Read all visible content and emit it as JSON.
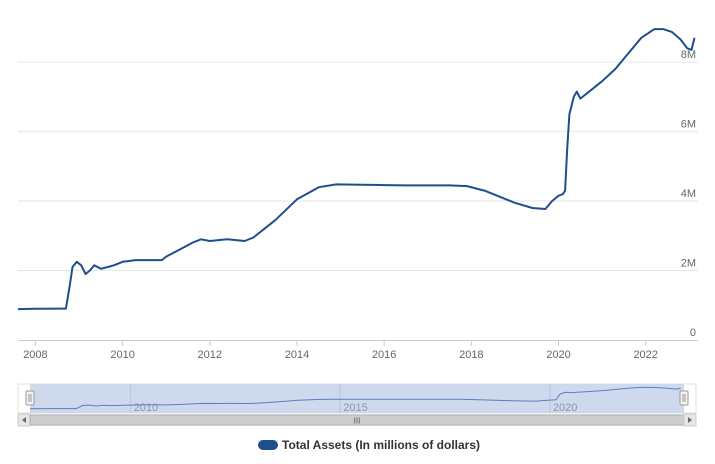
{
  "colors": {
    "series": "#1f4e8c",
    "grid": "#e6e6e6",
    "navigator_fill": "#c9d5ec",
    "navigator_line": "#5b7fb8",
    "scrollbar_bg": "#f2f2f2",
    "scrollbar_thumb": "#cccccc"
  },
  "legend": {
    "label": "Total Assets (In millions of dollars)"
  },
  "navigator": {
    "tick_labels": [
      "2010",
      "2015",
      "2020"
    ],
    "scrollbar_grip": "III"
  },
  "chart_data": {
    "type": "line",
    "title": "",
    "xlabel": "",
    "ylabel": "",
    "xlim": [
      2007.6,
      2023.2
    ],
    "ylim": [
      0,
      9500000
    ],
    "x_ticks": [
      "2008",
      "2010",
      "2012",
      "2014",
      "2016",
      "2018",
      "2020",
      "2022"
    ],
    "y_ticks": [
      {
        "value": 0,
        "label": "0"
      },
      {
        "value": 2000000,
        "label": "2M"
      },
      {
        "value": 4000000,
        "label": "4M"
      },
      {
        "value": 6000000,
        "label": "6M"
      },
      {
        "value": 8000000,
        "label": "8M"
      }
    ],
    "grid": "horizontal",
    "legend_position": "bottom-center",
    "series": [
      {
        "name": "Total Assets (In millions of dollars)",
        "x": [
          2007.6,
          2008.0,
          2008.5,
          2008.7,
          2008.78,
          2008.85,
          2008.95,
          2009.05,
          2009.15,
          2009.25,
          2009.35,
          2009.5,
          2009.65,
          2009.8,
          2010.0,
          2010.3,
          2010.6,
          2010.9,
          2011.0,
          2011.3,
          2011.6,
          2011.8,
          2012.0,
          2012.4,
          2012.8,
          2013.0,
          2013.5,
          2014.0,
          2014.5,
          2014.9,
          2015.5,
          2016.0,
          2016.5,
          2017.0,
          2017.5,
          2017.9,
          2018.3,
          2018.7,
          2019.0,
          2019.4,
          2019.7,
          2019.85,
          2020.0,
          2020.1,
          2020.15,
          2020.2,
          2020.25,
          2020.35,
          2020.42,
          2020.5,
          2020.6,
          2020.8,
          2021.0,
          2021.3,
          2021.6,
          2021.9,
          2022.2,
          2022.4,
          2022.6,
          2022.8,
          2022.95,
          2023.05,
          2023.12
        ],
        "y": [
          890000,
          900000,
          905000,
          905000,
          1500000,
          2100000,
          2250000,
          2150000,
          1900000,
          2000000,
          2150000,
          2050000,
          2100000,
          2150000,
          2250000,
          2300000,
          2300000,
          2300000,
          2400000,
          2600000,
          2800000,
          2900000,
          2850000,
          2900000,
          2850000,
          2950000,
          3450000,
          4050000,
          4400000,
          4480000,
          4470000,
          4460000,
          4450000,
          4450000,
          4450000,
          4430000,
          4300000,
          4100000,
          3950000,
          3800000,
          3770000,
          4000000,
          4150000,
          4200000,
          4300000,
          5500000,
          6500000,
          7000000,
          7150000,
          6950000,
          7050000,
          7250000,
          7450000,
          7800000,
          8250000,
          8700000,
          8950000,
          8950000,
          8870000,
          8650000,
          8400000,
          8350000,
          8700000
        ]
      }
    ]
  }
}
